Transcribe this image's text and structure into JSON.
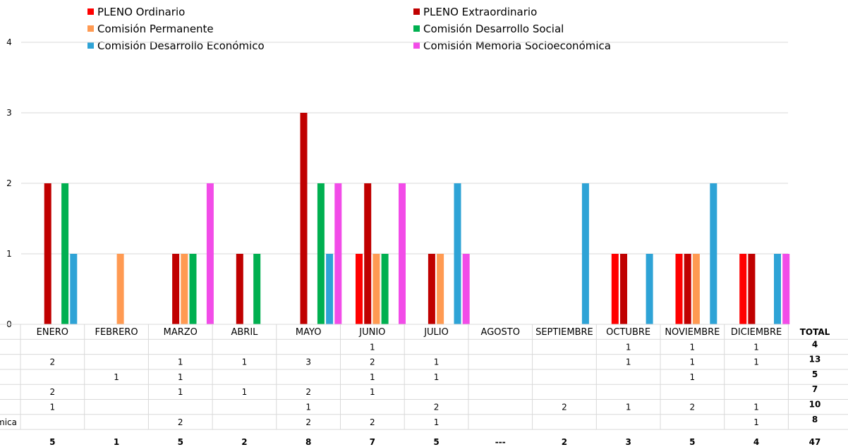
{
  "chart_data": {
    "type": "bar",
    "title": "",
    "xlabel": "",
    "ylabel": "",
    "ylim": [
      0,
      4
    ],
    "yticks": [
      "0",
      "1",
      "2",
      "3",
      "4"
    ],
    "grid": true,
    "legend_position": "top",
    "categories": [
      "ENERO",
      "FEBRERO",
      "MARZO",
      "ABRIL",
      "MAYO",
      "JUNIO",
      "JULIO",
      "AGOSTO",
      "SEPTIEMBRE",
      "OCTUBRE",
      "NOVIEMBRE",
      "DICIEMBRE"
    ],
    "series": [
      {
        "name": "PLENO Ordinario",
        "color": "#ff0000",
        "values": [
          0,
          0,
          0,
          0,
          0,
          1,
          0,
          0,
          0,
          1,
          1,
          1
        ],
        "table": [
          "",
          "",
          "",
          "",
          "",
          "1",
          "",
          "",
          "",
          "1",
          "1",
          "1"
        ],
        "total": "4"
      },
      {
        "name": "PLENO Extraordinario",
        "color": "#c00000",
        "values": [
          2,
          0,
          1,
          1,
          3,
          2,
          1,
          0,
          0,
          1,
          1,
          1
        ],
        "table": [
          "2",
          "",
          "1",
          "1",
          "3",
          "2",
          "1",
          "",
          "",
          "1",
          "1",
          "1"
        ],
        "total": "13"
      },
      {
        "name": "Comisión Permanente",
        "color": "#ff9a52",
        "values": [
          0,
          1,
          1,
          0,
          0,
          1,
          1,
          0,
          0,
          0,
          1,
          0
        ],
        "table": [
          "",
          "1",
          "1",
          "",
          "",
          "1",
          "1",
          "",
          "",
          "",
          "1",
          ""
        ],
        "total": "5"
      },
      {
        "name": "Comisión Desarrollo Social",
        "color": "#00b050",
        "values": [
          2,
          0,
          1,
          1,
          2,
          1,
          0,
          0,
          0,
          0,
          0,
          0
        ],
        "table": [
          "2",
          "",
          "1",
          "1",
          "2",
          "1",
          "",
          "",
          "",
          "",
          "",
          ""
        ],
        "total": "7"
      },
      {
        "name": "Comisión Desarrollo Económico",
        "color": "#2ea3d6",
        "values": [
          1,
          0,
          0,
          0,
          1,
          0,
          2,
          0,
          2,
          1,
          2,
          1
        ],
        "table": [
          "1",
          "",
          "",
          "",
          "1",
          "",
          "2",
          "",
          "2",
          "1",
          "2",
          "1"
        ],
        "total": "10"
      },
      {
        "name": "Comisión Memoria Socioeconómica",
        "color": "#f24ce8",
        "values": [
          0,
          0,
          2,
          0,
          2,
          2,
          1,
          0,
          0,
          0,
          0,
          1
        ],
        "table": [
          "",
          "",
          "2",
          "",
          "2",
          "2",
          "1",
          "",
          "",
          "",
          "",
          "1"
        ],
        "total": "8"
      }
    ],
    "month_totals": [
      "5",
      "1",
      "5",
      "2",
      "8",
      "7",
      "5",
      "---",
      "2",
      "3",
      "5",
      "4"
    ],
    "total_header": "TOTAL",
    "grand_total": "47",
    "row_label_fragment": "mica"
  }
}
